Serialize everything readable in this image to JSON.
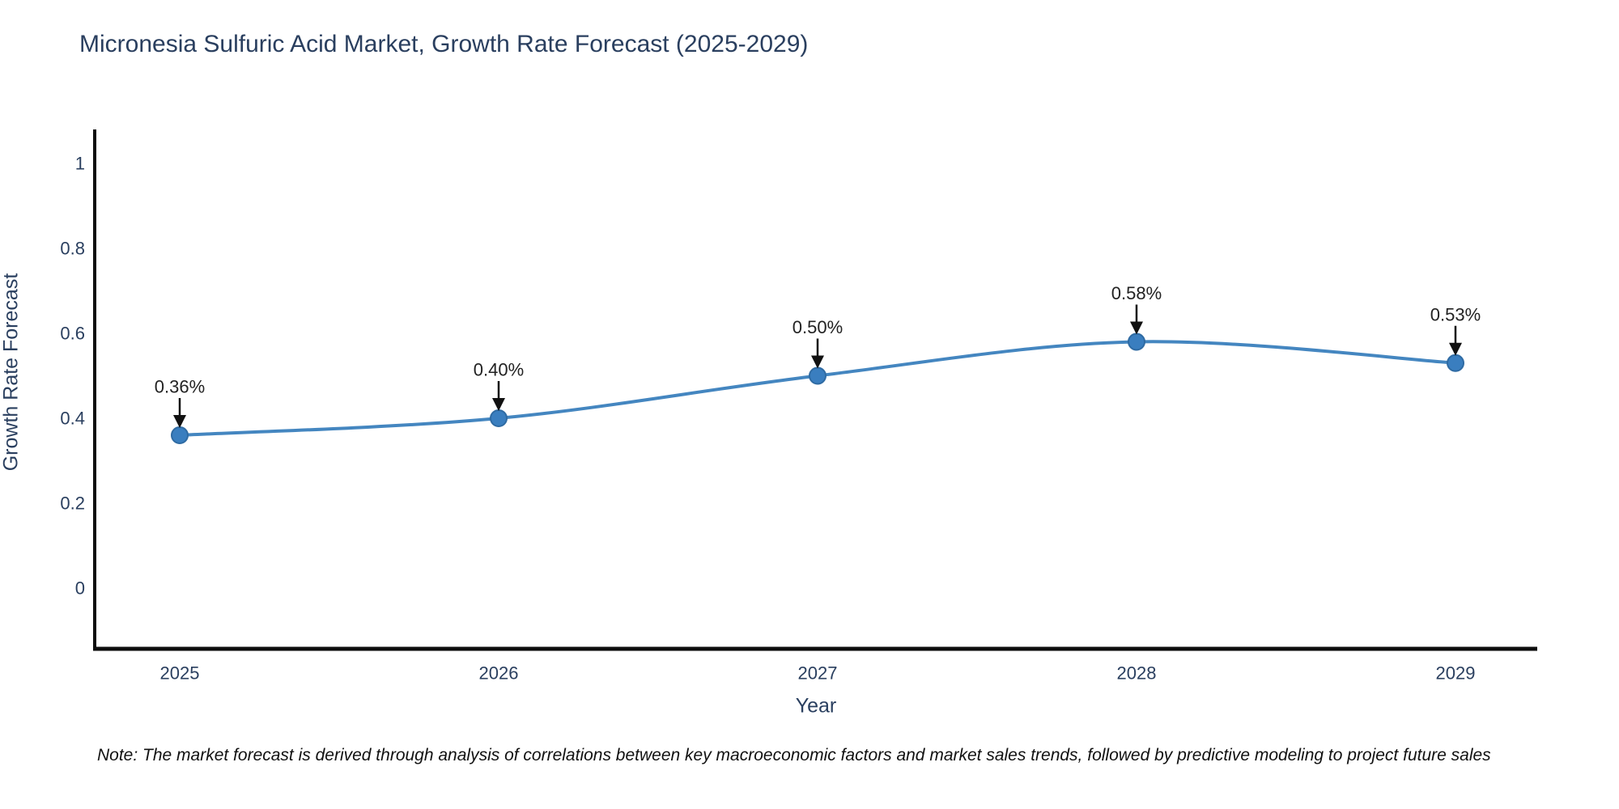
{
  "title": "Micronesia Sulfuric Acid Market, Growth Rate Forecast (2025-2029)",
  "note": "Note: The market forecast is derived through analysis of correlations between key macroeconomic factors and market sales trends, followed by predictive modeling to project future sales",
  "chart_data": {
    "type": "line",
    "title": "Micronesia Sulfuric Acid Market, Growth Rate Forecast (2025-2029)",
    "x": [
      2025,
      2026,
      2027,
      2028,
      2029
    ],
    "series": [
      {
        "name": "Growth Rate Forecast",
        "values": [
          0.36,
          0.4,
          0.5,
          0.58,
          0.53
        ]
      }
    ],
    "annotations": [
      "0.36%",
      "0.40%",
      "0.50%",
      "0.58%",
      "0.53%"
    ],
    "xlabel": "Year",
    "ylabel": "Growth Rate Forecast",
    "yticks": [
      0,
      0.2,
      0.4,
      0.6,
      0.8,
      1
    ],
    "ylim": [
      -0.14,
      1.08
    ],
    "grid": false,
    "legend": "none",
    "line_shape": "spline"
  },
  "colors": {
    "line": "#4486c0",
    "marker_fill": "#3a7ebf",
    "marker_edge": "#2f6ba3",
    "axis_line": "#0d0d0d",
    "arrow": "#111111",
    "title_text": "#2a3f5f",
    "tick_text": "#2a3f5f",
    "annotation_text": "#222222"
  }
}
